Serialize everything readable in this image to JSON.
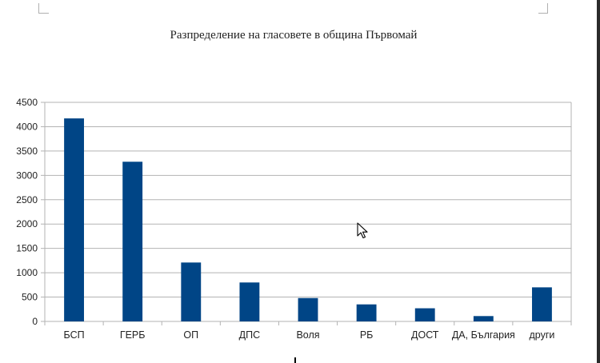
{
  "chart_data": {
    "type": "bar",
    "title": "Разпределение на гласовете в община Първомай",
    "xlabel": "",
    "ylabel": "",
    "categories": [
      "БСП",
      "ГЕРБ",
      "ОП",
      "ДПС",
      "Воля",
      "РБ",
      "ДОСТ",
      "ДА, България",
      "други"
    ],
    "values": [
      4170,
      3280,
      1210,
      800,
      480,
      350,
      270,
      110,
      700
    ],
    "ylim": [
      0,
      4500
    ],
    "yticks": [
      "0",
      "500",
      "1000",
      "1500",
      "2000",
      "2500",
      "3000",
      "3500",
      "4000",
      "4500"
    ],
    "grid": true,
    "legend": "none",
    "bar_color": "#004586",
    "grid_color": "#b3b3b3"
  },
  "cursor": {
    "icon": "mouse-pointer-icon"
  }
}
